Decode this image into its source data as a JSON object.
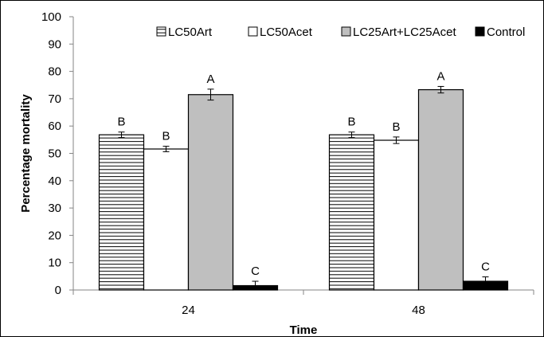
{
  "chart_data": {
    "type": "bar",
    "title": "",
    "xlabel": "Time",
    "ylabel": "Percentage mortality",
    "ylim": [
      0,
      100
    ],
    "yticks": [
      0,
      10,
      20,
      30,
      40,
      50,
      60,
      70,
      80,
      90,
      100
    ],
    "categories": [
      "24",
      "48"
    ],
    "grid": false,
    "legend_position": "top-right",
    "series": [
      {
        "name": "LC50Art",
        "fill": "hatch-horizontal",
        "color": "#000000",
        "values": [
          56.8,
          56.8
        ],
        "errors": [
          1.0,
          1.0
        ],
        "letters": [
          "B",
          "B"
        ]
      },
      {
        "name": "LC50Acet",
        "fill": "solid",
        "color": "#ffffff",
        "values": [
          51.6,
          54.8
        ],
        "errors": [
          1.0,
          1.2
        ],
        "letters": [
          "B",
          "B"
        ]
      },
      {
        "name": "LC25Art+LC25Acet",
        "fill": "solid",
        "color": "#bfbfbf",
        "values": [
          71.5,
          73.3
        ],
        "errors": [
          2.0,
          1.2
        ],
        "letters": [
          "A",
          "A"
        ]
      },
      {
        "name": "Control",
        "fill": "solid",
        "color": "#000000",
        "values": [
          1.6,
          3.2
        ],
        "errors": [
          1.6,
          1.6
        ],
        "letters": [
          "C",
          "C"
        ]
      }
    ]
  }
}
